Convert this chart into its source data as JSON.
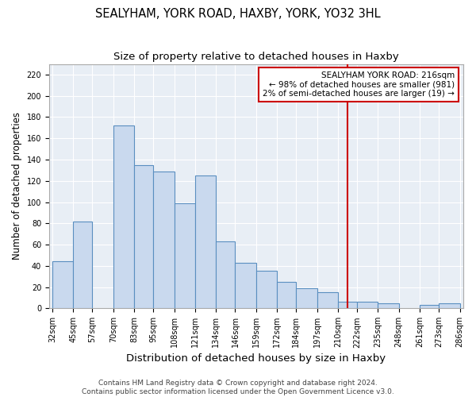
{
  "title": "SEALYHAM, YORK ROAD, HAXBY, YORK, YO32 3HL",
  "subtitle": "Size of property relative to detached houses in Haxby",
  "xlabel": "Distribution of detached houses by size in Haxby",
  "ylabel": "Number of detached properties",
  "bar_edges": [
    32,
    45,
    57,
    70,
    83,
    95,
    108,
    121,
    134,
    146,
    159,
    172,
    184,
    197,
    210,
    222,
    235,
    248,
    261,
    273,
    286
  ],
  "bar_heights": [
    44,
    82,
    0,
    172,
    135,
    129,
    99,
    125,
    63,
    43,
    35,
    25,
    19,
    15,
    6,
    6,
    5,
    0,
    3,
    5
  ],
  "bar_color": "#c9d9ee",
  "bar_edgecolor": "#5a8fc0",
  "vline_x": 216,
  "vline_color": "#cc0000",
  "annotation_title": "SEALYHAM YORK ROAD: 216sqm",
  "annotation_line1": "← 98% of detached houses are smaller (981)",
  "annotation_line2": "2% of semi-detached houses are larger (19) →",
  "annotation_box_facecolor": "#ffffff",
  "annotation_box_edgecolor": "#cc0000",
  "plot_bg_color": "#e8eef5",
  "ylim": [
    0,
    230
  ],
  "xlim_left": 32,
  "xlim_right": 286,
  "tick_labels": [
    "32sqm",
    "45sqm",
    "57sqm",
    "70sqm",
    "83sqm",
    "95sqm",
    "108sqm",
    "121sqm",
    "134sqm",
    "146sqm",
    "159sqm",
    "172sqm",
    "184sqm",
    "197sqm",
    "210sqm",
    "222sqm",
    "235sqm",
    "248sqm",
    "261sqm",
    "273sqm",
    "286sqm"
  ],
  "tick_positions": [
    32,
    45,
    57,
    70,
    83,
    95,
    108,
    121,
    134,
    146,
    159,
    172,
    184,
    197,
    210,
    222,
    235,
    248,
    261,
    273,
    286
  ],
  "ytick_values": [
    0,
    20,
    40,
    60,
    80,
    100,
    120,
    140,
    160,
    180,
    200,
    220
  ],
  "footer_line1": "Contains HM Land Registry data © Crown copyright and database right 2024.",
  "footer_line2": "Contains public sector information licensed under the Open Government Licence v3.0.",
  "title_fontsize": 10.5,
  "subtitle_fontsize": 9.5,
  "xlabel_fontsize": 9.5,
  "ylabel_fontsize": 8.5,
  "tick_fontsize": 7,
  "annotation_fontsize": 7.5,
  "footer_fontsize": 6.5
}
